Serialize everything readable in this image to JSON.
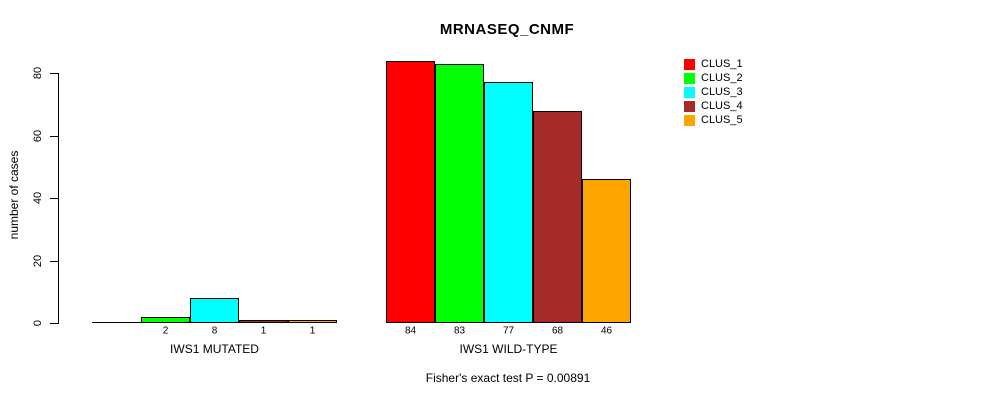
{
  "chart_data": {
    "type": "bar",
    "title": "MRNASEQ_CNMF",
    "ylabel": "number of cases",
    "xlabel": "",
    "ylim": [
      0,
      80
    ],
    "yticks": [
      0,
      20,
      40,
      60,
      80
    ],
    "grid": false,
    "legend_position": "top-right",
    "categories": [
      "IWS1 MUTATED",
      "IWS1 WILD-TYPE"
    ],
    "series": [
      {
        "name": "CLUS_1",
        "color": "#FF0000",
        "values": [
          0,
          84
        ]
      },
      {
        "name": "CLUS_2",
        "color": "#00FF00",
        "values": [
          2,
          83
        ]
      },
      {
        "name": "CLUS_3",
        "color": "#00FFFF",
        "values": [
          8,
          77
        ]
      },
      {
        "name": "CLUS_4",
        "color": "#A52A2A",
        "values": [
          1,
          68
        ]
      },
      {
        "name": "CLUS_5",
        "color": "#FFA500",
        "values": [
          1,
          46
        ]
      }
    ],
    "bar_value_labels": [
      [
        "",
        "2",
        "8",
        "1",
        "1"
      ],
      [
        "84",
        "83",
        "77",
        "68",
        "46"
      ]
    ],
    "legend": [
      {
        "label": "CLUS_1",
        "color": "#FF0000"
      },
      {
        "label": "CLUS_2",
        "color": "#00FF00"
      },
      {
        "label": "CLUS_3",
        "color": "#00FFFF"
      },
      {
        "label": "CLUS_4",
        "color": "#A52A2A"
      },
      {
        "label": "CLUS_5",
        "color": "#FFA500"
      }
    ],
    "annotation": "Fisher's exact test P = 0.00891"
  }
}
